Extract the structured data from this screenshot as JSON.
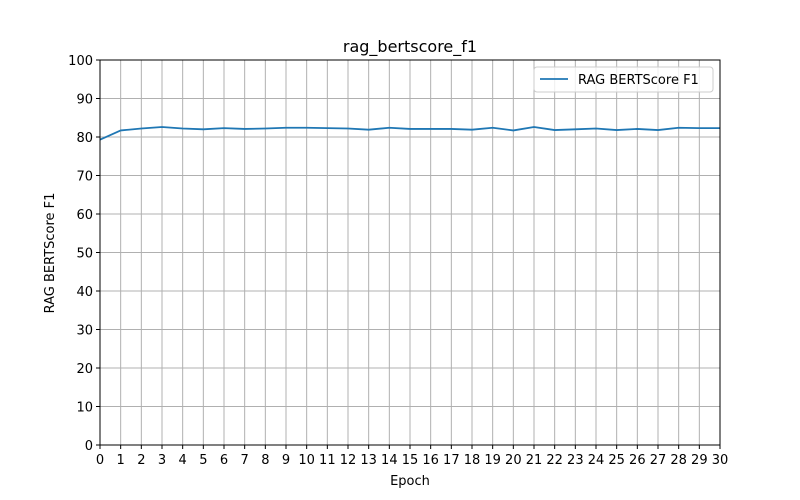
{
  "chart_data": {
    "type": "line",
    "title": "rag_bertscore_f1",
    "xlabel": "Epoch",
    "ylabel": "RAG BERTScore F1",
    "xlim": [
      0,
      30
    ],
    "ylim": [
      0,
      100
    ],
    "x_ticks": [
      0,
      1,
      2,
      3,
      4,
      5,
      6,
      7,
      8,
      9,
      10,
      11,
      12,
      13,
      14,
      15,
      16,
      17,
      18,
      19,
      20,
      21,
      22,
      23,
      24,
      25,
      26,
      27,
      28,
      29,
      30
    ],
    "y_ticks": [
      0,
      10,
      20,
      30,
      40,
      50,
      60,
      70,
      80,
      90,
      100
    ],
    "grid": true,
    "legend_position": "top-right",
    "x": [
      0,
      1,
      2,
      3,
      4,
      5,
      6,
      7,
      8,
      9,
      10,
      11,
      12,
      13,
      14,
      15,
      16,
      17,
      18,
      19,
      20,
      21,
      22,
      23,
      24,
      25,
      26,
      27,
      28,
      29,
      30
    ],
    "series": [
      {
        "name": "RAG BERTScore F1",
        "color": "#1f77b4",
        "values": [
          79.3,
          81.7,
          82.2,
          82.6,
          82.2,
          82.0,
          82.3,
          82.1,
          82.2,
          82.4,
          82.4,
          82.3,
          82.2,
          81.9,
          82.4,
          82.1,
          82.1,
          82.1,
          81.9,
          82.4,
          81.7,
          82.6,
          81.8,
          82.0,
          82.2,
          81.8,
          82.1,
          81.8,
          82.4,
          82.3,
          82.3
        ]
      }
    ]
  }
}
